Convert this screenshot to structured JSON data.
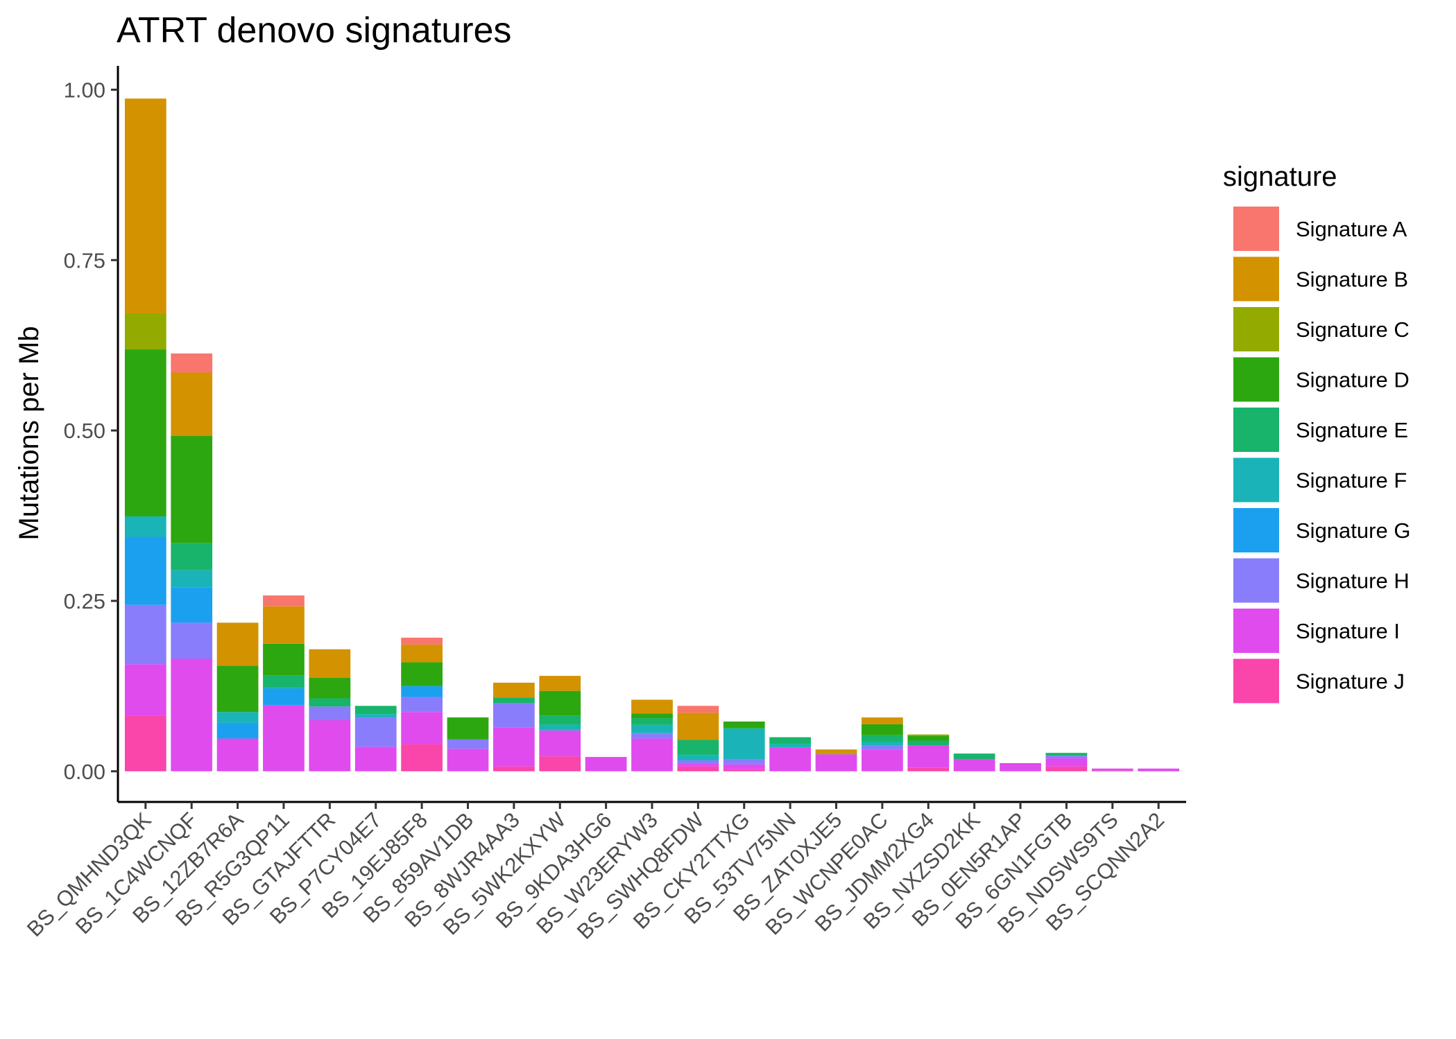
{
  "chart_data": {
    "type": "bar",
    "stacked": true,
    "title": "ATRT denovo signatures",
    "xlabel": "",
    "ylabel": "Mutations per Mb",
    "ylim": [
      -0.045,
      1.035
    ],
    "yticks": [
      0.0,
      0.25,
      0.5,
      0.75,
      1.0
    ],
    "ytick_labels": [
      "0.00",
      "0.25",
      "0.50",
      "0.75",
      "1.00"
    ],
    "grid": false,
    "legend": {
      "title": "signature",
      "position": "right"
    },
    "categories": [
      "BS_QMHND3QK",
      "BS_1C4WCNQF",
      "BS_12ZB7R6A",
      "BS_R5G3QP11",
      "BS_GTAJFTTR",
      "BS_P7CY04E7",
      "BS_19EJ85F8",
      "BS_859AV1DB",
      "BS_8WJR4AA3",
      "BS_5WK2KXYW",
      "BS_9KDA3HG6",
      "BS_W23ERYW3",
      "BS_SWHQ8FDW",
      "BS_CKY2TTXG",
      "BS_53TV75NN",
      "BS_ZAT0XJE5",
      "BS_WCNPE0AC",
      "BS_JDMM2XG4",
      "BS_NXZSD2KK",
      "BS_0EN5R1AP",
      "BS_6GN1FGTB",
      "BS_NDSWS9TS",
      "BS_SCQNN2A2"
    ],
    "series": [
      {
        "name": "Signature A",
        "color": "#F8766D",
        "values": [
          0,
          0.028,
          0,
          0.016,
          0,
          0,
          0.01,
          0,
          0,
          0,
          0,
          0,
          0.01,
          0,
          0,
          0,
          0,
          0,
          0,
          0,
          0,
          0,
          0
        ]
      },
      {
        "name": "Signature B",
        "color": "#D39200",
        "values": [
          0.315,
          0.093,
          0.063,
          0.055,
          0.042,
          0,
          0.026,
          0,
          0.022,
          0.022,
          0,
          0.02,
          0.04,
          0,
          0,
          0.005,
          0.01,
          0,
          0,
          0,
          0,
          0,
          0
        ]
      },
      {
        "name": "Signature C",
        "color": "#93AA00",
        "values": [
          0.053,
          0,
          0,
          0,
          0,
          0,
          0,
          0,
          0,
          0,
          0,
          0,
          0,
          0,
          0,
          0.002,
          0,
          0.002,
          0,
          0,
          0,
          0,
          0
        ]
      },
      {
        "name": "Signature D",
        "color": "#2DA70F",
        "values": [
          0.245,
          0.157,
          0.068,
          0.046,
          0.03,
          0,
          0.035,
          0.032,
          0,
          0.036,
          0,
          0.007,
          0,
          0.01,
          0,
          0,
          0.016,
          0.007,
          0,
          0,
          0,
          0,
          0
        ]
      },
      {
        "name": "Signature E",
        "color": "#18B46B",
        "values": [
          0,
          0.04,
          0,
          0.019,
          0.012,
          0.012,
          0,
          0,
          0.008,
          0.014,
          0,
          0.01,
          0.022,
          0,
          0.01,
          0,
          0.01,
          0.007,
          0.008,
          0,
          0.004,
          0,
          0
        ]
      },
      {
        "name": "Signature F",
        "color": "#1AB4B8",
        "values": [
          0.03,
          0.025,
          0.016,
          0,
          0,
          0.005,
          0,
          0,
          0,
          0.008,
          0,
          0.012,
          0.008,
          0.045,
          0.005,
          0,
          0.005,
          0,
          0,
          0,
          0,
          0,
          0
        ]
      },
      {
        "name": "Signature G",
        "color": "#1BA0F0",
        "values": [
          0.1,
          0.052,
          0.023,
          0.025,
          0,
          0,
          0.016,
          0,
          0,
          0,
          0,
          0,
          0,
          0,
          0,
          0,
          0,
          0,
          0,
          0,
          0,
          0,
          0
        ]
      },
      {
        "name": "Signature H",
        "color": "#8A7DFC",
        "values": [
          0.087,
          0.053,
          0,
          0,
          0.02,
          0.043,
          0.022,
          0.014,
          0.036,
          0,
          0,
          0.008,
          0.005,
          0.008,
          0,
          0,
          0.006,
          0,
          0,
          0,
          0.004,
          0,
          0
        ]
      },
      {
        "name": "Signature I",
        "color": "#E04BEE",
        "values": [
          0.075,
          0.165,
          0.048,
          0.097,
          0.075,
          0.036,
          0.047,
          0.033,
          0.057,
          0.038,
          0.021,
          0.048,
          0.004,
          0.007,
          0.035,
          0.025,
          0.032,
          0.033,
          0.018,
          0.012,
          0.012,
          0.003,
          0.004
        ]
      },
      {
        "name": "Signature J",
        "color": "#FA45AA",
        "values": [
          0.082,
          0,
          0,
          0,
          0,
          0,
          0.04,
          0,
          0.007,
          0.022,
          0,
          0,
          0.007,
          0.003,
          0,
          0,
          0,
          0.005,
          0,
          0,
          0.007,
          0.001,
          0
        ]
      }
    ]
  }
}
